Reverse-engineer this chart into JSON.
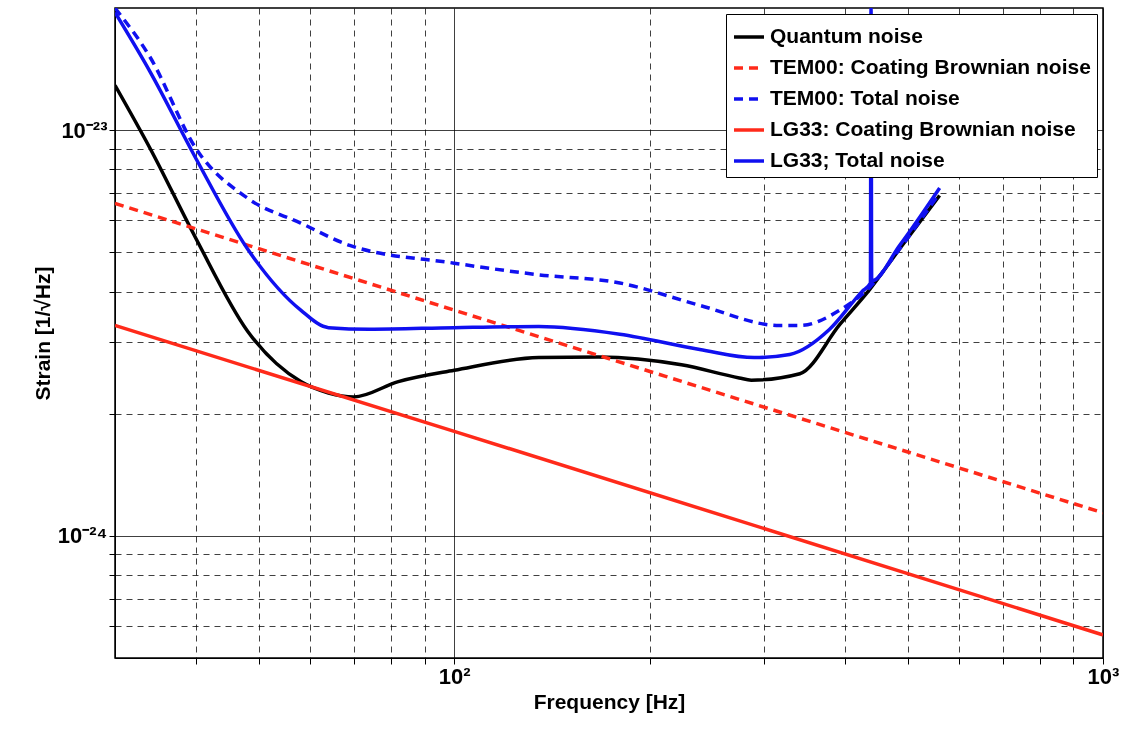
{
  "chart_data": {
    "type": "line",
    "xlabel": "Frequency [Hz]",
    "ylabel": "Strain [1/√Hz]",
    "log": "xy",
    "grid": true,
    "legend": "top right",
    "xlim": [
      30,
      1000
    ],
    "ylim": [
      5e-25,
      2e-23
    ],
    "xticks": [
      {
        "value": 40,
        "label": null
      },
      {
        "value": 50,
        "label": null
      },
      {
        "value": 60,
        "label": null
      },
      {
        "value": 70,
        "label": null
      },
      {
        "value": 80,
        "label": null
      },
      {
        "value": 90,
        "label": null
      },
      {
        "value": 100,
        "label": "10²"
      },
      {
        "value": 200,
        "label": null
      },
      {
        "value": 300,
        "label": null
      },
      {
        "value": 400,
        "label": null
      },
      {
        "value": 500,
        "label": null
      },
      {
        "value": 600,
        "label": null
      },
      {
        "value": 700,
        "label": null
      },
      {
        "value": 800,
        "label": null
      },
      {
        "value": 900,
        "label": null
      },
      {
        "value": 1000,
        "label": "10³"
      }
    ],
    "yticks": [
      {
        "value": 6e-25,
        "label": null
      },
      {
        "value": 7e-25,
        "label": null
      },
      {
        "value": 8e-25,
        "label": null
      },
      {
        "value": 9e-25,
        "label": null
      },
      {
        "value": 1e-24,
        "label": "10⁻²⁴"
      },
      {
        "value": 2e-24,
        "label": null
      },
      {
        "value": 3e-24,
        "label": null
      },
      {
        "value": 4e-24,
        "label": null
      },
      {
        "value": 5e-24,
        "label": null
      },
      {
        "value": 6e-24,
        "label": null
      },
      {
        "value": 7e-24,
        "label": null
      },
      {
        "value": 8e-24,
        "label": null
      },
      {
        "value": 9e-24,
        "label": null
      },
      {
        "value": 1e-23,
        "label": "10⁻²³"
      }
    ],
    "series": [
      {
        "name": "Quantum noise",
        "color": "#000000",
        "line_style": "solid",
        "x": [
          30,
          34,
          40,
          48,
          58,
          64,
          70,
          82,
          100,
          135,
          167,
          224,
          275,
          287,
          341,
          393,
          437,
          486,
          560
        ],
        "values": [
          1.29e-23,
          9e-24,
          5.4e-24,
          3.2e-24,
          2.4e-24,
          2.25e-24,
          2.2e-24,
          2.4e-24,
          2.56e-24,
          2.75e-24,
          2.76e-24,
          2.64e-24,
          2.45e-24,
          2.42e-24,
          2.51e-24,
          3.32e-24,
          4.05e-24,
          5.1e-24,
          6.9e-24
        ]
      },
      {
        "name": "TEM00: Coating Brownian noise",
        "color": "#ff2a1a",
        "line_style": "dashed",
        "x": [
          30,
          100,
          1000
        ],
        "values": [
          6.6e-24,
          3.6e-24,
          1.14e-24
        ]
      },
      {
        "name": "TEM00: Total noise",
        "color": "#1010f0",
        "line_style": "dashed",
        "x": [
          30,
          34,
          40,
          48,
          58,
          69,
          100,
          135,
          180,
          239,
          317,
          341,
          393,
          437,
          486,
          560
        ],
        "values": [
          2e-23,
          1.51e-23,
          9e-24,
          6.8e-24,
          5.9e-24,
          5.2e-24,
          4.7e-24,
          4.4e-24,
          4.2e-24,
          3.7e-24,
          3.3e-24,
          3.3e-24,
          3.6e-24,
          4.1e-24,
          5.1e-24,
          7e-24
        ]
      },
      {
        "name": "LG33: Coating Brownian noise",
        "color": "#ff2a1a",
        "line_style": "solid",
        "x": [
          30,
          100,
          1000
        ],
        "values": [
          3.3e-24,
          1.81e-24,
          5.7e-25
        ]
      },
      {
        "name": "LG33; Total noise",
        "color": "#1010f0",
        "line_style": "solid",
        "x": [
          30,
          34,
          40,
          48,
          58,
          64,
          74,
          100,
          135,
          180,
          239,
          290,
          329,
          379,
          425,
          438,
          439,
          440,
          486,
          560
        ],
        "values": [
          1.95e-23,
          1.39e-23,
          8.5e-24,
          5.1e-24,
          3.6e-24,
          3.26e-24,
          3.23e-24,
          3.26e-24,
          3.28e-24,
          3.14e-24,
          2.88e-24,
          2.75e-24,
          2.8e-24,
          3.23e-24,
          4e-24,
          4.2e-24,
          2e-23,
          4.25e-24,
          5.2e-24,
          7.2e-24
        ]
      }
    ]
  }
}
